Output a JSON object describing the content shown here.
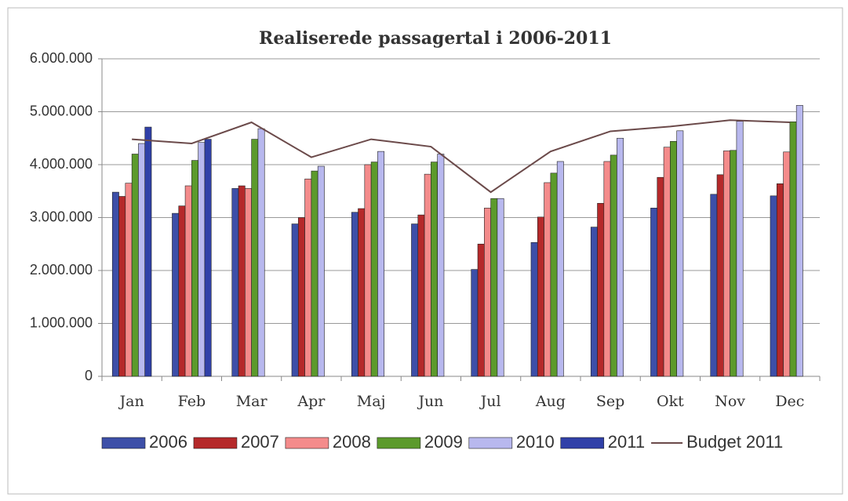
{
  "chart_data": {
    "type": "bar",
    "title": "Realiserede passagertal i 2006-2011",
    "categories": [
      "Jan",
      "Feb",
      "Mar",
      "Apr",
      "Maj",
      "Jun",
      "Jul",
      "Aug",
      "Sep",
      "Okt",
      "Nov",
      "Dec"
    ],
    "series": [
      {
        "name": "2006",
        "color": "#3d4fa8",
        "values": [
          3480000,
          3080000,
          3550000,
          2880000,
          3100000,
          2880000,
          2020000,
          2530000,
          2820000,
          3180000,
          3440000,
          3410000
        ]
      },
      {
        "name": "2007",
        "color": "#b5292a",
        "values": [
          3400000,
          3220000,
          3600000,
          3000000,
          3170000,
          3050000,
          2500000,
          3010000,
          3270000,
          3760000,
          3810000,
          3640000
        ]
      },
      {
        "name": "2008",
        "color": "#f48b8b",
        "values": [
          3650000,
          3600000,
          3550000,
          3730000,
          4000000,
          3820000,
          3180000,
          3660000,
          4060000,
          4330000,
          4260000,
          4240000
        ]
      },
      {
        "name": "2009",
        "color": "#5c9a2c",
        "values": [
          4200000,
          4080000,
          4480000,
          3880000,
          4050000,
          4050000,
          3360000,
          3840000,
          4180000,
          4440000,
          4270000,
          4810000
        ]
      },
      {
        "name": "2010",
        "color": "#b8b8ee",
        "values": [
          4400000,
          4420000,
          4680000,
          3970000,
          4250000,
          4200000,
          3360000,
          4060000,
          4500000,
          4640000,
          4820000,
          5120000
        ]
      },
      {
        "name": "2011",
        "color": "#3040a8",
        "values": [
          4710000,
          4480000,
          null,
          null,
          null,
          null,
          null,
          null,
          null,
          null,
          null,
          null
        ]
      },
      {
        "name": "Budget 2011",
        "color": "#6b4a4a",
        "type": "line",
        "values": [
          4480000,
          4400000,
          4800000,
          4140000,
          4480000,
          4340000,
          3480000,
          4250000,
          4630000,
          4720000,
          4840000,
          4800000
        ]
      }
    ],
    "ylim": [
      0,
      6000000
    ],
    "yticks": [
      {
        "value": 0,
        "label": "0"
      },
      {
        "value": 1000000,
        "label": "1.000.000"
      },
      {
        "value": 2000000,
        "label": "2.000.000"
      },
      {
        "value": 3000000,
        "label": "3.000.000"
      },
      {
        "value": 4000000,
        "label": "4.000.000"
      },
      {
        "value": 5000000,
        "label": "5.000.000"
      },
      {
        "value": 6000000,
        "label": "6.000.000"
      }
    ],
    "grid": true,
    "legend": "bottom"
  }
}
